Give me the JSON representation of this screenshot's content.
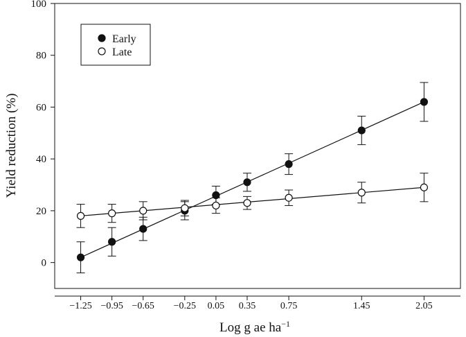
{
  "chart_data": {
    "type": "scatter",
    "xlabel": "Log g ae ha",
    "xlabel_superscript": "−1",
    "ylabel": "Yield reduction (%)",
    "xlim": [
      -1.5,
      2.4
    ],
    "ylim": [
      -10,
      100
    ],
    "x_ticks": [
      -1.25,
      -0.95,
      -0.65,
      -0.25,
      0.05,
      0.35,
      0.75,
      1.45,
      2.05
    ],
    "x_tick_labels": [
      "−1.25",
      "−0.95",
      "−0.65",
      "−0.25",
      "0.05",
      "0.35",
      "0.75",
      "1.45",
      "2.05"
    ],
    "y_ticks": [
      0,
      20,
      40,
      60,
      80,
      100
    ],
    "y_tick_labels": [
      "0",
      "20",
      "40",
      "60",
      "80",
      "100"
    ],
    "grid": false,
    "legend_position": "top-left",
    "series": [
      {
        "name": "Early",
        "marker": "filled-circle",
        "color": "#111111",
        "x": [
          -1.25,
          -0.95,
          -0.65,
          -0.25,
          0.05,
          0.35,
          0.75,
          1.45,
          2.05
        ],
        "y": [
          2,
          8,
          13,
          20,
          26,
          31,
          38,
          51,
          62
        ],
        "error": [
          6,
          5.5,
          4.5,
          3.5,
          3.5,
          3.5,
          4,
          5.5,
          7.5
        ],
        "fit_line": [
          [
            -1.25,
            2
          ],
          [
            2.05,
            62
          ]
        ]
      },
      {
        "name": "Late",
        "marker": "open-circle",
        "color": "#111111",
        "x": [
          -1.25,
          -0.95,
          -0.65,
          -0.25,
          0.05,
          0.35,
          0.75,
          1.45,
          2.05
        ],
        "y": [
          18,
          19,
          20,
          21,
          22,
          23,
          25,
          27,
          29
        ],
        "error": [
          4.5,
          3.5,
          3.5,
          3,
          3,
          2.5,
          3,
          4,
          5.5
        ],
        "fit_line": [
          [
            -1.25,
            18
          ],
          [
            2.05,
            29
          ]
        ]
      }
    ]
  }
}
